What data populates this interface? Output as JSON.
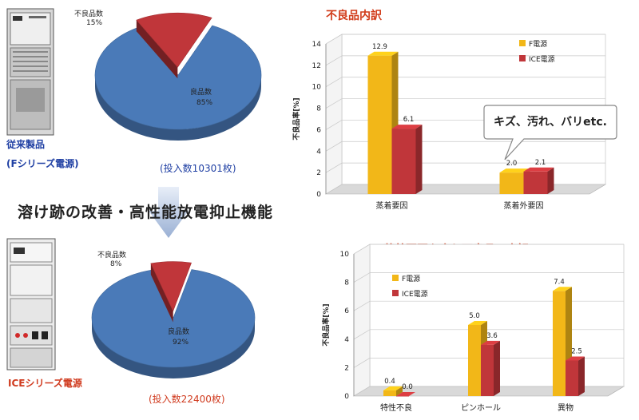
{
  "colors": {
    "f_series": "#f2b718",
    "ice_series": "#c0363a",
    "pie_main": "#4a7ab8",
    "pie_defect": "#c0363a",
    "title_red": "#d13a18",
    "label_blue": "#1f3fa3"
  },
  "top_product": {
    "name": "従来製品",
    "series": "(Fシリーズ電源)"
  },
  "bottom_product": {
    "name": "ICEシリーズ電源"
  },
  "banner": "溶け跡の改善・高性能放電抑止機能",
  "callout": "キズ、汚れ、バリetc.",
  "chart_data": [
    {
      "type": "pie",
      "id": "pie-top",
      "slices": [
        {
          "label": "良品数",
          "value": 85,
          "display": "85%"
        },
        {
          "label": "不良品数",
          "value": 15,
          "display": "15%"
        }
      ],
      "caption": "(投入数10301枚)"
    },
    {
      "type": "pie",
      "id": "pie-bottom",
      "slices": [
        {
          "label": "良品数",
          "value": 92,
          "display": "92%"
        },
        {
          "label": "不良品数",
          "value": 8,
          "display": "8%"
        }
      ],
      "caption": "(投入数22400枚)"
    },
    {
      "type": "bar",
      "id": "bar-top",
      "title": "不良品内訳",
      "ylabel": "不良品率[%]",
      "ylim": [
        0,
        14
      ],
      "yticks": [
        0,
        2,
        4,
        6,
        8,
        10,
        12,
        14
      ],
      "categories": [
        "蒸着要因",
        "蒸着外要因"
      ],
      "series": [
        {
          "name": "F電源",
          "values": [
            12.9,
            2.0
          ],
          "labels": [
            "12.9",
            "2.0"
          ]
        },
        {
          "name": "ICE電源",
          "values": [
            6.1,
            2.1
          ],
          "labels": [
            "6.1",
            "2.1"
          ]
        }
      ]
    },
    {
      "type": "bar",
      "id": "bar-bottom",
      "title": "蒸着要因を含む不良品の内訳",
      "ylabel": "不良品率[%]",
      "ylim": [
        0,
        10
      ],
      "yticks": [
        0,
        2,
        4,
        6,
        8,
        10
      ],
      "categories": [
        "特性不良",
        "ピンホール",
        "異物"
      ],
      "series": [
        {
          "name": "F電源",
          "values": [
            0.4,
            5.0,
            7.4
          ],
          "labels": [
            "0.4",
            "5.0",
            "7.4"
          ]
        },
        {
          "name": "ICE電源",
          "values": [
            0.0,
            3.6,
            2.5
          ],
          "labels": [
            "0.0",
            "3.6",
            "2.5"
          ]
        }
      ]
    }
  ]
}
